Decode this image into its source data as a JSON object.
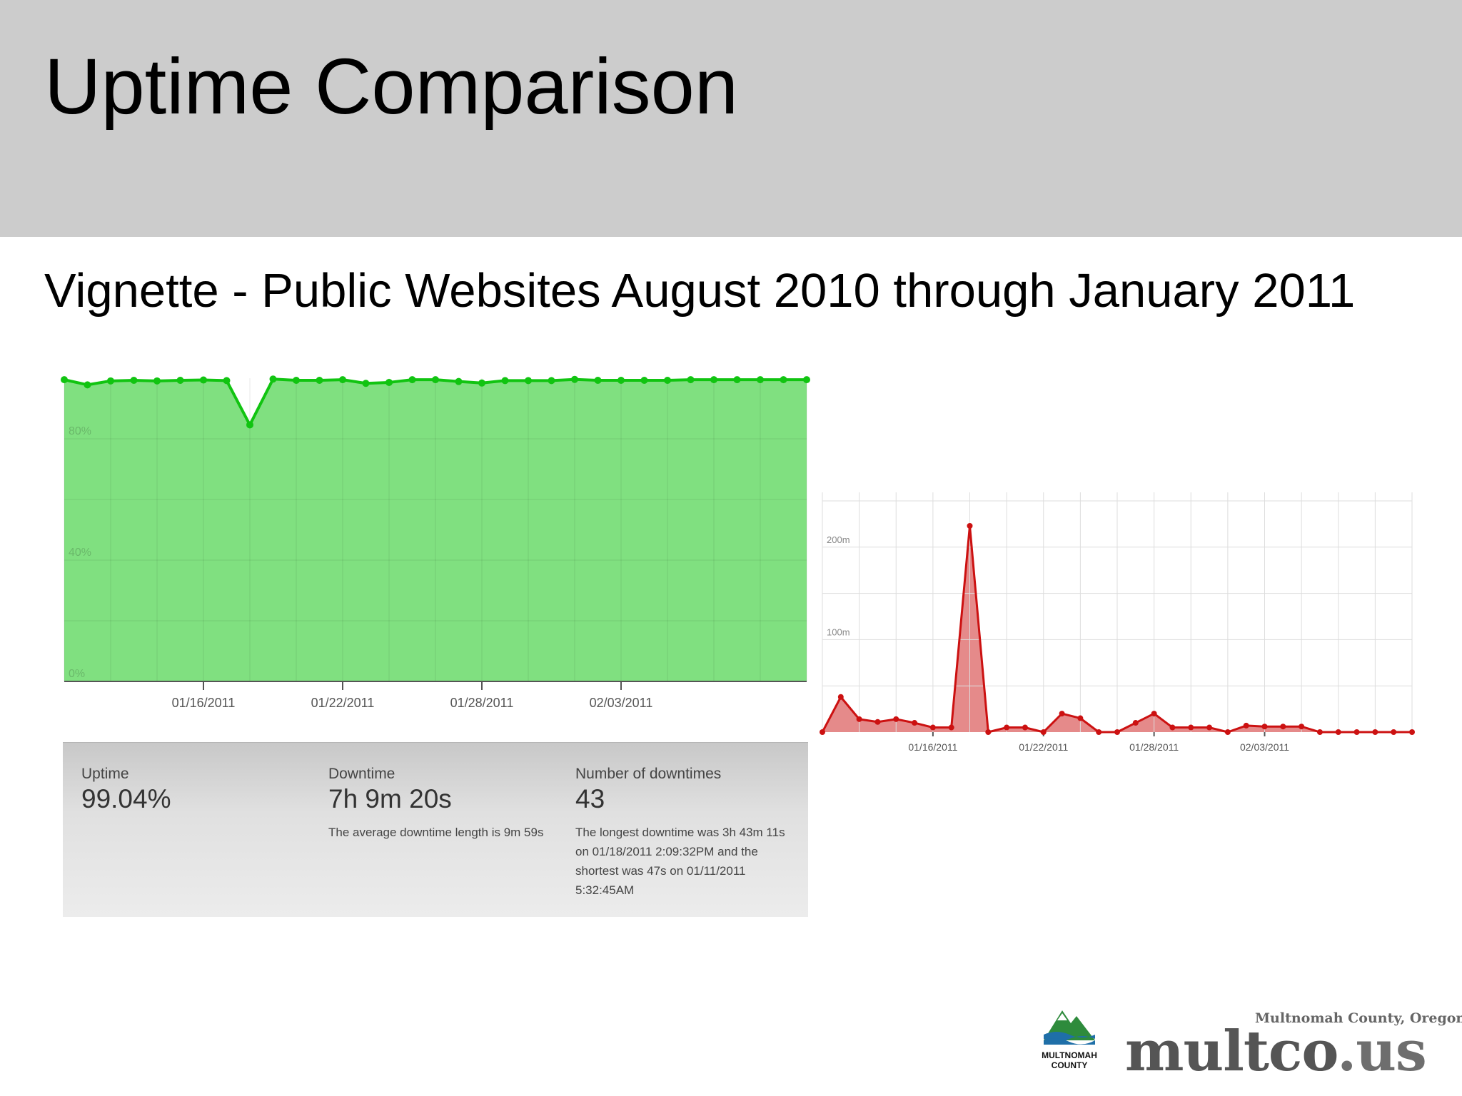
{
  "slide": {
    "title": "Uptime Comparison",
    "subtitle": "Vignette - Public Websites August 2010 through January 2011"
  },
  "uptime_stats": {
    "uptime_label": "Uptime",
    "uptime_value": "99.04%",
    "downtime_label": "Downtime",
    "downtime_value": "7h 9m 20s",
    "downtime_note": "The average downtime length is 9m 59s",
    "count_label": "Number of downtimes",
    "count_value": "43",
    "count_note": "The longest downtime was 3h 43m 11s on 01/18/2011 2:09:32PM and the shortest was 47s on 01/11/2011 5:32:45AM"
  },
  "logo": {
    "tagline": "Multnomah County, Oregon",
    "site_main": "multco",
    "site_tld": ".us",
    "county_line1": "MULTNOMAH",
    "county_line2": "COUNTY"
  },
  "colors": {
    "uptime_fill": "#80e080",
    "uptime_line": "#11c411",
    "downtime_fill": "#e58a8a",
    "downtime_line": "#cc1111",
    "grid": "#dddddd",
    "logo_green": "#2e8b3c",
    "logo_blue": "#1f6fa8"
  },
  "chart_data": [
    {
      "type": "area",
      "ylim": [
        0,
        100
      ],
      "y_ticks": [
        "0%",
        "40%",
        "80%"
      ],
      "x_ticks": [
        "01/16/2011",
        "01/22/2011",
        "01/28/2011",
        "02/03/2011"
      ],
      "x": [
        "01/10/2011",
        "01/11/2011",
        "01/12/2011",
        "01/13/2011",
        "01/14/2011",
        "01/15/2011",
        "01/16/2011",
        "01/17/2011",
        "01/18/2011",
        "01/19/2011",
        "01/20/2011",
        "01/21/2011",
        "01/22/2011",
        "01/23/2011",
        "01/24/2011",
        "01/25/2011",
        "01/26/2011",
        "01/27/2011",
        "01/28/2011",
        "01/29/2011",
        "01/30/2011",
        "01/31/2011",
        "02/01/2011",
        "02/02/2011",
        "02/03/2011",
        "02/04/2011",
        "02/05/2011",
        "02/06/2011",
        "02/07/2011",
        "02/08/2011",
        "02/09/2011",
        "02/10/2011",
        "02/11/2011"
      ],
      "values": [
        99.5,
        97.8,
        99.1,
        99.3,
        99.1,
        99.3,
        99.4,
        99.2,
        84.6,
        99.7,
        99.3,
        99.3,
        99.5,
        98.3,
        98.6,
        99.5,
        99.5,
        98.9,
        98.4,
        99.2,
        99.2,
        99.2,
        99.6,
        99.3,
        99.3,
        99.3,
        99.3,
        99.5,
        99.5,
        99.5,
        99.5,
        99.5,
        99.5
      ]
    },
    {
      "type": "area",
      "ylim": [
        0,
        250
      ],
      "y_ticks": [
        "100m",
        "200m"
      ],
      "x_ticks": [
        "01/16/2011",
        "01/22/2011",
        "01/28/2011",
        "02/03/2011"
      ],
      "x": [
        "01/10/2011",
        "01/11/2011",
        "01/12/2011",
        "01/13/2011",
        "01/14/2011",
        "01/15/2011",
        "01/16/2011",
        "01/17/2011",
        "01/18/2011",
        "01/19/2011",
        "01/20/2011",
        "01/21/2011",
        "01/22/2011",
        "01/23/2011",
        "01/24/2011",
        "01/25/2011",
        "01/26/2011",
        "01/27/2011",
        "01/28/2011",
        "01/29/2011",
        "01/30/2011",
        "01/31/2011",
        "02/01/2011",
        "02/02/2011",
        "02/03/2011",
        "02/04/2011",
        "02/05/2011",
        "02/06/2011",
        "02/07/2011",
        "02/08/2011",
        "02/09/2011",
        "02/10/2011",
        "02/11/2011"
      ],
      "values": [
        0,
        38,
        14,
        11,
        14,
        10,
        5,
        5,
        223,
        0,
        5,
        5,
        0,
        20,
        15,
        0,
        0,
        10,
        20,
        5,
        5,
        5,
        0,
        7,
        6,
        6,
        6,
        0,
        0,
        0,
        0,
        0,
        0
      ]
    }
  ]
}
